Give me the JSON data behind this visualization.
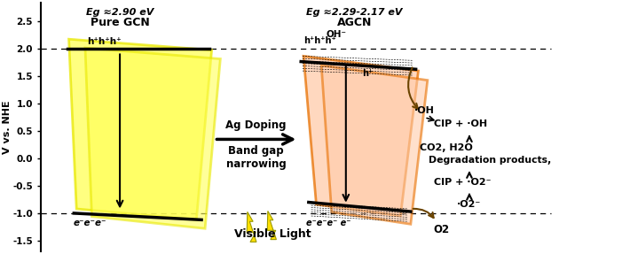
{
  "y_label": "V vs. NHE",
  "y_ticks": [
    -1.5,
    -1.0,
    -0.5,
    0.0,
    0.5,
    1.0,
    1.5,
    2.0,
    2.5
  ],
  "y_lim": [
    -1.7,
    2.85
  ],
  "x_lim": [
    0,
    11.5
  ],
  "gcn_cb": -1.0,
  "gcn_vb": 2.0,
  "agcn_cb": -0.8,
  "agcn_vb": 1.55,
  "gcn_color": "#FFFF55",
  "gcn_edge": "#E8E800",
  "agcn_color": "#FFCCAA",
  "agcn_edge": "#E87000",
  "visible_light": "Visible Light",
  "ag_doping": "Ag Doping",
  "band_gap_narrowing": "Band gap\nnarrowing",
  "gcn_label": "Pure GCN",
  "agcn_label": "AGCN",
  "gcn_eg": "Eg ≈2.90 eV",
  "agcn_eg": "Eg ≈2.29-2.17 eV",
  "o2": "O2",
  "o2_radical": "·O2⁻",
  "cip_o2": "CIP + ·O2⁻",
  "deg_products": "Degradation products,",
  "co2_h2o": "CO2, H2O",
  "cip_oh": "CIP + ·OH",
  "oh_radical": "·OH",
  "oh_minus": "OH⁻",
  "e3_gcn": "e⁻e⁻e⁻",
  "h3_gcn": "h⁺h⁺h⁺",
  "e4_agcn": "e⁻e⁻e⁻ e⁻",
  "h3_agcn": "h⁺h⁺h⁺",
  "h_plus": "h⁺",
  "arrow_brown": "#6B4400",
  "lightning_color": "#FFE000",
  "lightning_edge": "#999900",
  "bg_color": "#FFFFFF"
}
